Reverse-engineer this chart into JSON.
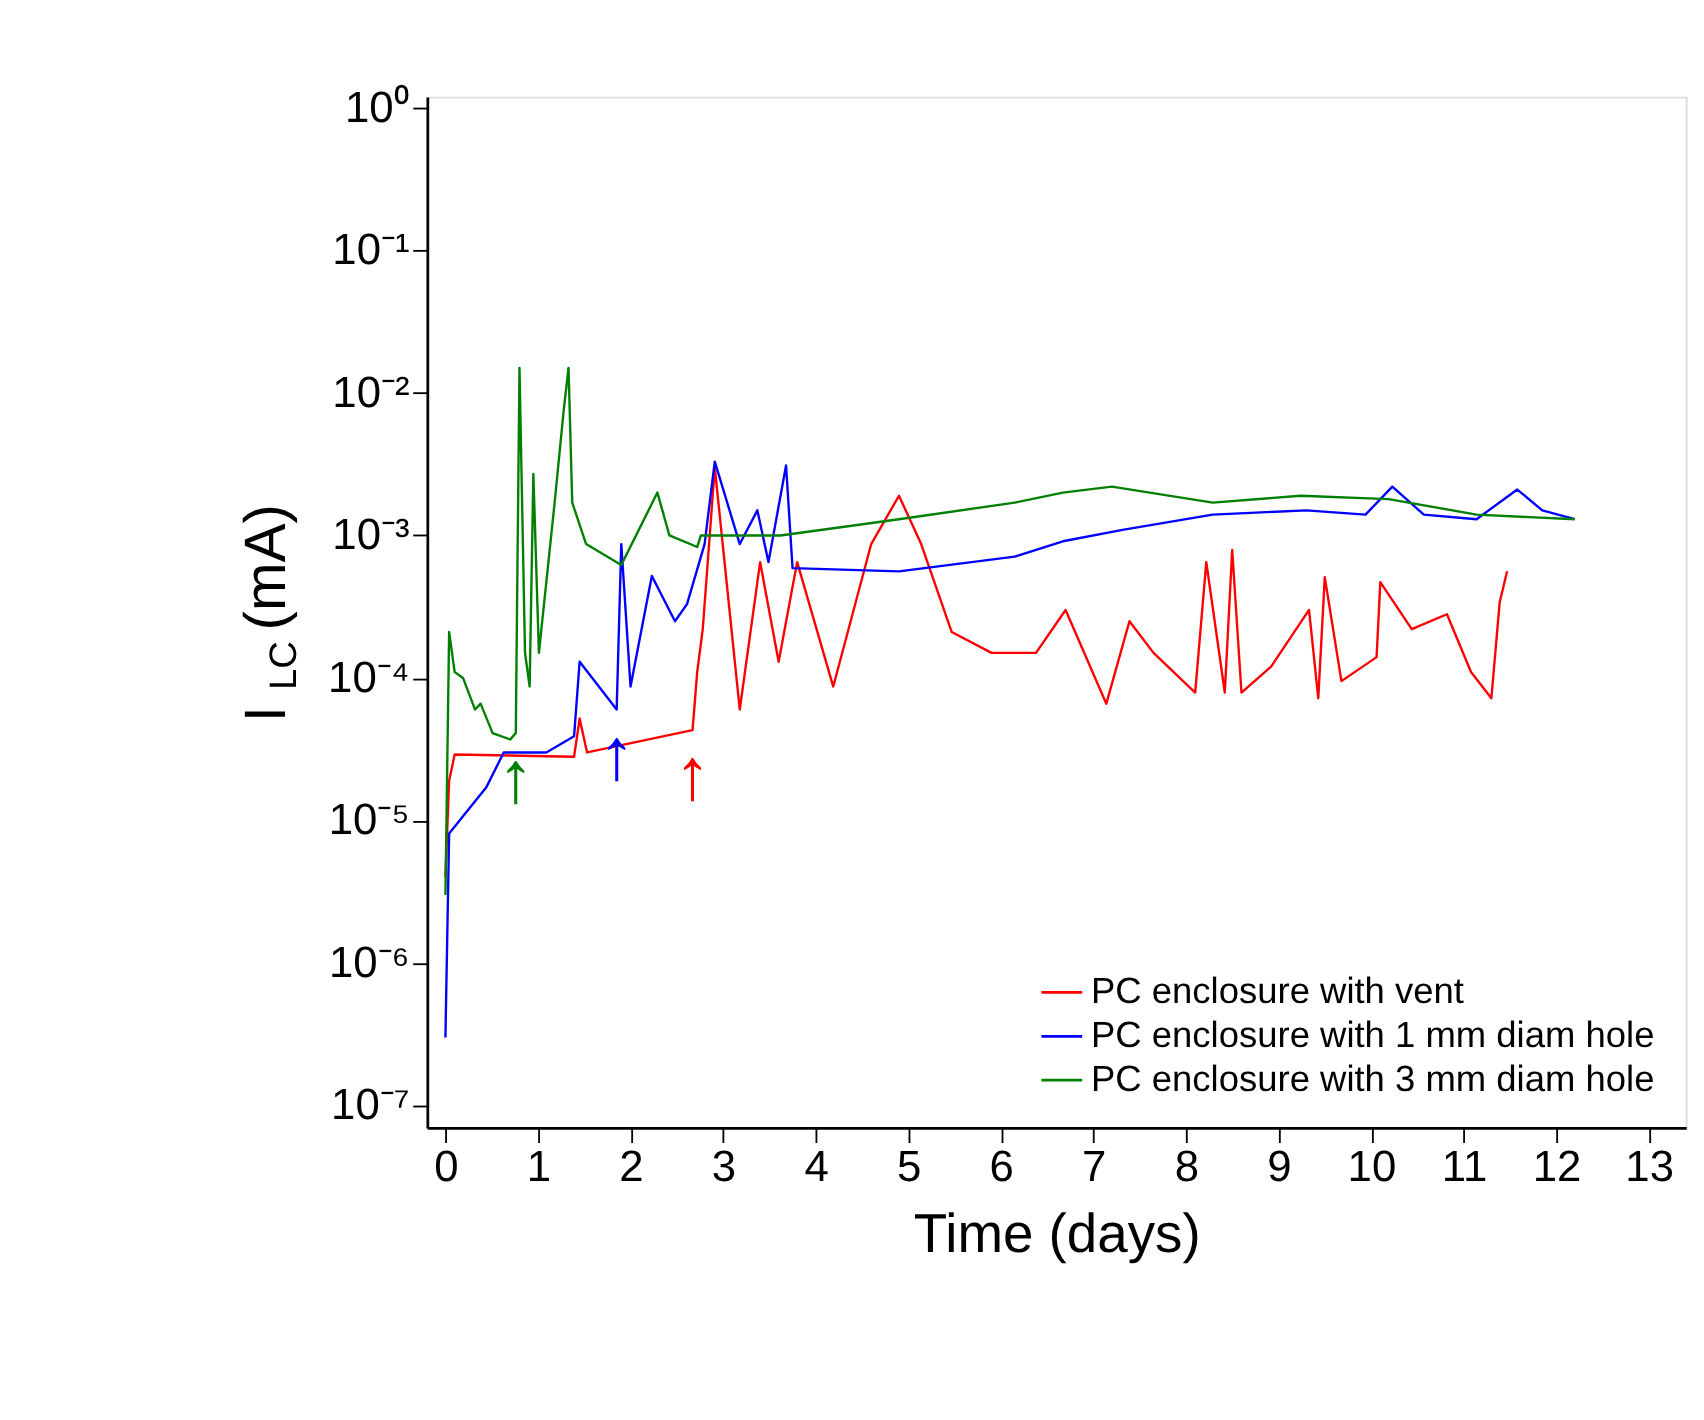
{
  "chart_data": {
    "type": "line",
    "xlabel": "Time (days)",
    "ylabel": "I$_{LC}$ (mA)",
    "log": "y",
    "grid": false,
    "legend": "bottom right",
    "line_style": "solid",
    "marker": "none",
    "xlim": [
      -0.2,
      13.4
    ],
    "xticks": [
      0,
      1,
      2,
      3,
      4,
      5,
      6,
      7,
      8,
      9,
      10,
      11,
      12,
      13
    ],
    "ylim": [
      7e-08,
      1.2
    ],
    "yticks": [
      {
        "value": 1e-07,
        "label": "10⁻⁷"
      },
      {
        "value": 1e-06,
        "label": "10⁻⁶"
      },
      {
        "value": 1e-05,
        "label": "10⁻⁵"
      },
      {
        "value": 0.0001,
        "label": "10⁻⁴"
      },
      {
        "value": 0.001,
        "label": "10⁻³"
      },
      {
        "value": 0.01,
        "label": "10⁻²"
      },
      {
        "value": 0.1,
        "label": "10⁻¹"
      },
      {
        "value": 1,
        "label": "10⁰"
      }
    ],
    "series": [
      {
        "name": "PC enclosure with vent",
        "color": "#ff0000",
        "x": [
          0,
          0.04,
          0.1,
          1.39,
          1.45,
          1.53,
          2.67,
          2.72,
          2.78,
          2.91,
          3.18,
          3.4,
          3.6,
          3.8,
          4.19,
          4.6,
          4.9,
          5.14,
          5.47,
          5.9,
          6.38,
          6.7,
          7.14,
          7.39,
          7.65,
          8.1,
          8.22,
          8.42,
          8.5,
          8.6,
          8.92,
          9.33,
          9.43,
          9.5,
          9.68,
          10.06,
          10.1,
          10.44,
          10.82,
          11.08,
          11.3,
          11.39,
          11.47
        ],
        "values": [
          4e-06,
          1.9e-05,
          2.9e-05,
          2.8e-05,
          5.2e-05,
          3e-05,
          4.3e-05,
          0.00011,
          0.00022,
          0.003,
          6e-05,
          0.00065,
          0.00013,
          0.00065,
          8.7e-05,
          0.00087,
          0.0019,
          0.00087,
          0.00021,
          0.00015,
          0.00015,
          0.0003,
          6.6e-05,
          0.00025,
          0.00015,
          7.9e-05,
          0.00065,
          7.9e-05,
          0.00079,
          7.9e-05,
          0.00012,
          0.0003,
          7.2e-05,
          0.00051,
          9.5e-05,
          0.00014,
          0.00047,
          0.00022,
          0.00028,
          0.00011,
          7.2e-05,
          0.00034,
          0.00056
        ]
      },
      {
        "name": "PC enclosure with 1 mm diam hole",
        "color": "#0000ff",
        "x": [
          0,
          0.04,
          0.44,
          0.63,
          1.09,
          1.39,
          1.45,
          1.85,
          1.9,
          2.0,
          2.23,
          2.48,
          2.61,
          2.8,
          2.91,
          3.18,
          3.37,
          3.49,
          3.68,
          3.75,
          4.9,
          6.15,
          6.67,
          7.33,
          8.29,
          9.3,
          9.94,
          10.23,
          10.57,
          11.14,
          11.58,
          11.85,
          12.2
        ],
        "values": [
          3e-07,
          8.1e-06,
          1.7e-05,
          3e-05,
          3e-05,
          3.9e-05,
          0.00013,
          6e-05,
          0.00087,
          8.7e-05,
          0.00052,
          0.00025,
          0.00033,
          0.00087,
          0.0033,
          0.00087,
          0.0015,
          0.00065,
          0.0031,
          0.00059,
          0.00056,
          0.00071,
          0.00091,
          0.0011,
          0.0014,
          0.0015,
          0.0014,
          0.0022,
          0.0014,
          0.0013,
          0.0021,
          0.0015,
          0.0013
        ]
      },
      {
        "name": "PC enclosure with 3 mm diam hole",
        "color": "#008000",
        "x": [
          0,
          0.04,
          0.1,
          0.19,
          0.32,
          0.38,
          0.51,
          0.7,
          0.76,
          0.8,
          0.86,
          0.91,
          0.95,
          1.01,
          1.18,
          1.28,
          1.33,
          1.37,
          1.52,
          1.9,
          2.29,
          2.42,
          2.72,
          2.76,
          3.62,
          4.9,
          6.15,
          6.67,
          7.2,
          8.29,
          9.24,
          10.19,
          11.14,
          12.2
        ],
        "values": [
          3e-06,
          0.00021,
          0.00011,
          0.0001,
          6e-05,
          6.6e-05,
          4.1e-05,
          3.7e-05,
          4.1e-05,
          0.015,
          0.00015,
          8.7e-05,
          0.0027,
          0.00015,
          0.0017,
          0.0078,
          0.015,
          0.0017,
          0.00087,
          0.00062,
          0.002,
          0.001,
          0.00083,
          0.001,
          0.001,
          0.0013,
          0.0017,
          0.002,
          0.0022,
          0.0017,
          0.0019,
          0.0018,
          0.0014,
          0.0013
        ]
      }
    ],
    "annotations": [
      {
        "text": "↑",
        "x": 0.76,
        "y": 4.1e-05
      },
      {
        "text": "↑",
        "x": 1.85,
        "y": 6e-05
      },
      {
        "text": "↑",
        "x": 2.67,
        "y": 4.3e-05
      }
    ]
  }
}
